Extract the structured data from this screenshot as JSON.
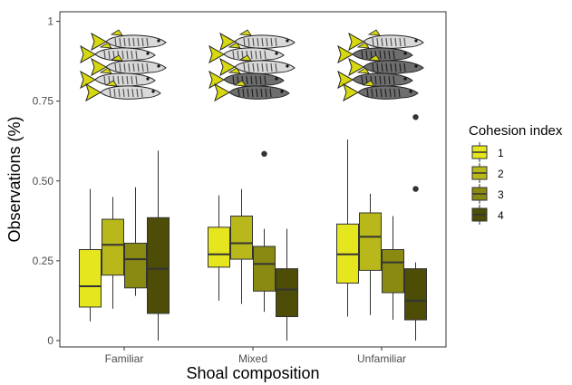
{
  "chart_data": {
    "type": "box",
    "xlabel": "Shoal composition",
    "ylabel": "Observations (%)",
    "categories": [
      "Familiar",
      "Mixed",
      "Unfamiliar"
    ],
    "ylim": [
      -0.02,
      1.03
    ],
    "yticks": [
      0,
      0.25,
      0.5,
      0.75,
      1
    ],
    "ytick_labels": [
      "0",
      "0.25",
      "0.50",
      "0.75",
      "1"
    ],
    "grid": false,
    "legend": {
      "title": "Cohesion index",
      "position": "right",
      "entries": [
        "1",
        "2",
        "3",
        "4"
      ]
    },
    "colors": [
      "#e6e61e",
      "#b8b81a",
      "#8a8a12",
      "#4d4d08"
    ],
    "series": [
      {
        "name": "1",
        "boxes": [
          {
            "whisker_low": 0.06,
            "q1": 0.105,
            "median": 0.17,
            "q3": 0.285,
            "whisker_high": 0.475,
            "outliers": []
          },
          {
            "whisker_low": 0.125,
            "q1": 0.23,
            "median": 0.27,
            "q3": 0.355,
            "whisker_high": 0.455,
            "outliers": []
          },
          {
            "whisker_low": 0.075,
            "q1": 0.18,
            "median": 0.27,
            "q3": 0.365,
            "whisker_high": 0.63,
            "outliers": []
          }
        ]
      },
      {
        "name": "2",
        "boxes": [
          {
            "whisker_low": 0.1,
            "q1": 0.205,
            "median": 0.3,
            "q3": 0.38,
            "whisker_high": 0.45,
            "outliers": []
          },
          {
            "whisker_low": 0.115,
            "q1": 0.255,
            "median": 0.305,
            "q3": 0.39,
            "whisker_high": 0.475,
            "outliers": []
          },
          {
            "whisker_low": 0.08,
            "q1": 0.22,
            "median": 0.325,
            "q3": 0.4,
            "whisker_high": 0.46,
            "outliers": []
          }
        ]
      },
      {
        "name": "3",
        "boxes": [
          {
            "whisker_low": 0.14,
            "q1": 0.165,
            "median": 0.255,
            "q3": 0.305,
            "whisker_high": 0.48,
            "outliers": []
          },
          {
            "whisker_low": 0.09,
            "q1": 0.155,
            "median": 0.24,
            "q3": 0.295,
            "whisker_high": 0.35,
            "outliers": [
              0.585
            ]
          },
          {
            "whisker_low": 0.065,
            "q1": 0.15,
            "median": 0.245,
            "q3": 0.285,
            "whisker_high": 0.39,
            "outliers": []
          }
        ]
      },
      {
        "name": "4",
        "boxes": [
          {
            "whisker_low": 0.0,
            "q1": 0.085,
            "median": 0.225,
            "q3": 0.385,
            "whisker_high": 0.595,
            "outliers": []
          },
          {
            "whisker_low": 0.0,
            "q1": 0.075,
            "median": 0.16,
            "q3": 0.225,
            "whisker_high": 0.35,
            "outliers": []
          },
          {
            "whisker_low": 0.0,
            "q1": 0.065,
            "median": 0.125,
            "q3": 0.225,
            "whisker_high": 0.245,
            "outliers": [
              0.475,
              0.7
            ]
          }
        ]
      }
    ],
    "annotations": [
      {
        "category": "Familiar",
        "icon": "fish-shoal-icon",
        "dark_fish": 0
      },
      {
        "category": "Mixed",
        "icon": "fish-shoal-icon",
        "dark_fish": 2
      },
      {
        "category": "Unfamiliar",
        "icon": "fish-shoal-icon",
        "dark_fish": 4
      }
    ]
  }
}
